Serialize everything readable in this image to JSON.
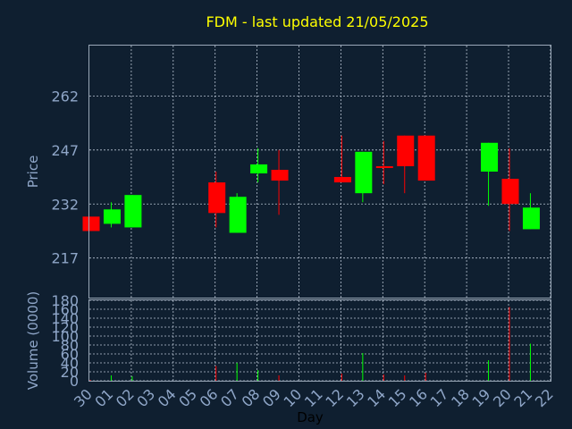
{
  "chart_data": {
    "type": "candlestick",
    "title": "FDM - last updated 21/05/2025",
    "ylabel": "Price",
    "xlabel": "Day",
    "volume_label": "Volume (0000)",
    "x_ticks": [
      "30",
      "01",
      "02",
      "03",
      "04",
      "05",
      "06",
      "07",
      "08",
      "09",
      "10",
      "11",
      "12",
      "13",
      "14",
      "15",
      "16",
      "17",
      "18",
      "19",
      "20",
      "21",
      "22"
    ],
    "y_ticks": [
      217,
      232,
      247,
      262
    ],
    "volume_ticks": [
      0,
      20,
      40,
      60,
      80,
      100,
      120,
      140,
      160,
      180
    ],
    "price_range": [
      206,
      276
    ],
    "volume_range": [
      0,
      180
    ],
    "up_color": "#00ff00",
    "down_color": "#ff0000",
    "candles": [
      {
        "day": "30",
        "open": 228.5,
        "close": 224.5,
        "high": 228.5,
        "low": 224.5,
        "volume": 2
      },
      {
        "day": "01",
        "open": 226.5,
        "close": 230.5,
        "high": 232.5,
        "low": 225.5,
        "volume": 12
      },
      {
        "day": "02",
        "open": 225.5,
        "close": 234.5,
        "high": 234.5,
        "low": 225.5,
        "volume": 10
      },
      {
        "day": "06",
        "open": 238.0,
        "close": 229.5,
        "high": 241.0,
        "low": 225.5,
        "volume": 33
      },
      {
        "day": "07",
        "open": 224.0,
        "close": 234.0,
        "high": 235.0,
        "low": 224.0,
        "volume": 40
      },
      {
        "day": "08",
        "open": 240.5,
        "close": 243.0,
        "high": 247.5,
        "low": 238.0,
        "volume": 24
      },
      {
        "day": "09",
        "open": 241.5,
        "close": 238.5,
        "high": 247.0,
        "low": 229.0,
        "volume": 12
      },
      {
        "day": "12",
        "open": 239.5,
        "close": 238.0,
        "high": 251.0,
        "low": 238.0,
        "volume": 16
      },
      {
        "day": "13",
        "open": 235.0,
        "close": 246.5,
        "high": 246.5,
        "low": 232.5,
        "volume": 62
      },
      {
        "day": "14",
        "open": 242.5,
        "close": 242.0,
        "high": 249.5,
        "low": 237.5,
        "volume": 14
      },
      {
        "day": "15",
        "open": 251.0,
        "close": 242.5,
        "high": 251.0,
        "low": 235.0,
        "volume": 12
      },
      {
        "day": "16",
        "open": 251.0,
        "close": 238.5,
        "high": 251.0,
        "low": 238.5,
        "volume": 18
      },
      {
        "day": "19",
        "open": 241.0,
        "close": 249.0,
        "high": 249.0,
        "low": 231.5,
        "volume": 46
      },
      {
        "day": "20",
        "open": 239.0,
        "close": 232.0,
        "high": 247.5,
        "low": 224.5,
        "volume": 165
      },
      {
        "day": "21",
        "open": 225.0,
        "close": 231.0,
        "high": 235.0,
        "low": 225.0,
        "volume": 83
      }
    ]
  }
}
